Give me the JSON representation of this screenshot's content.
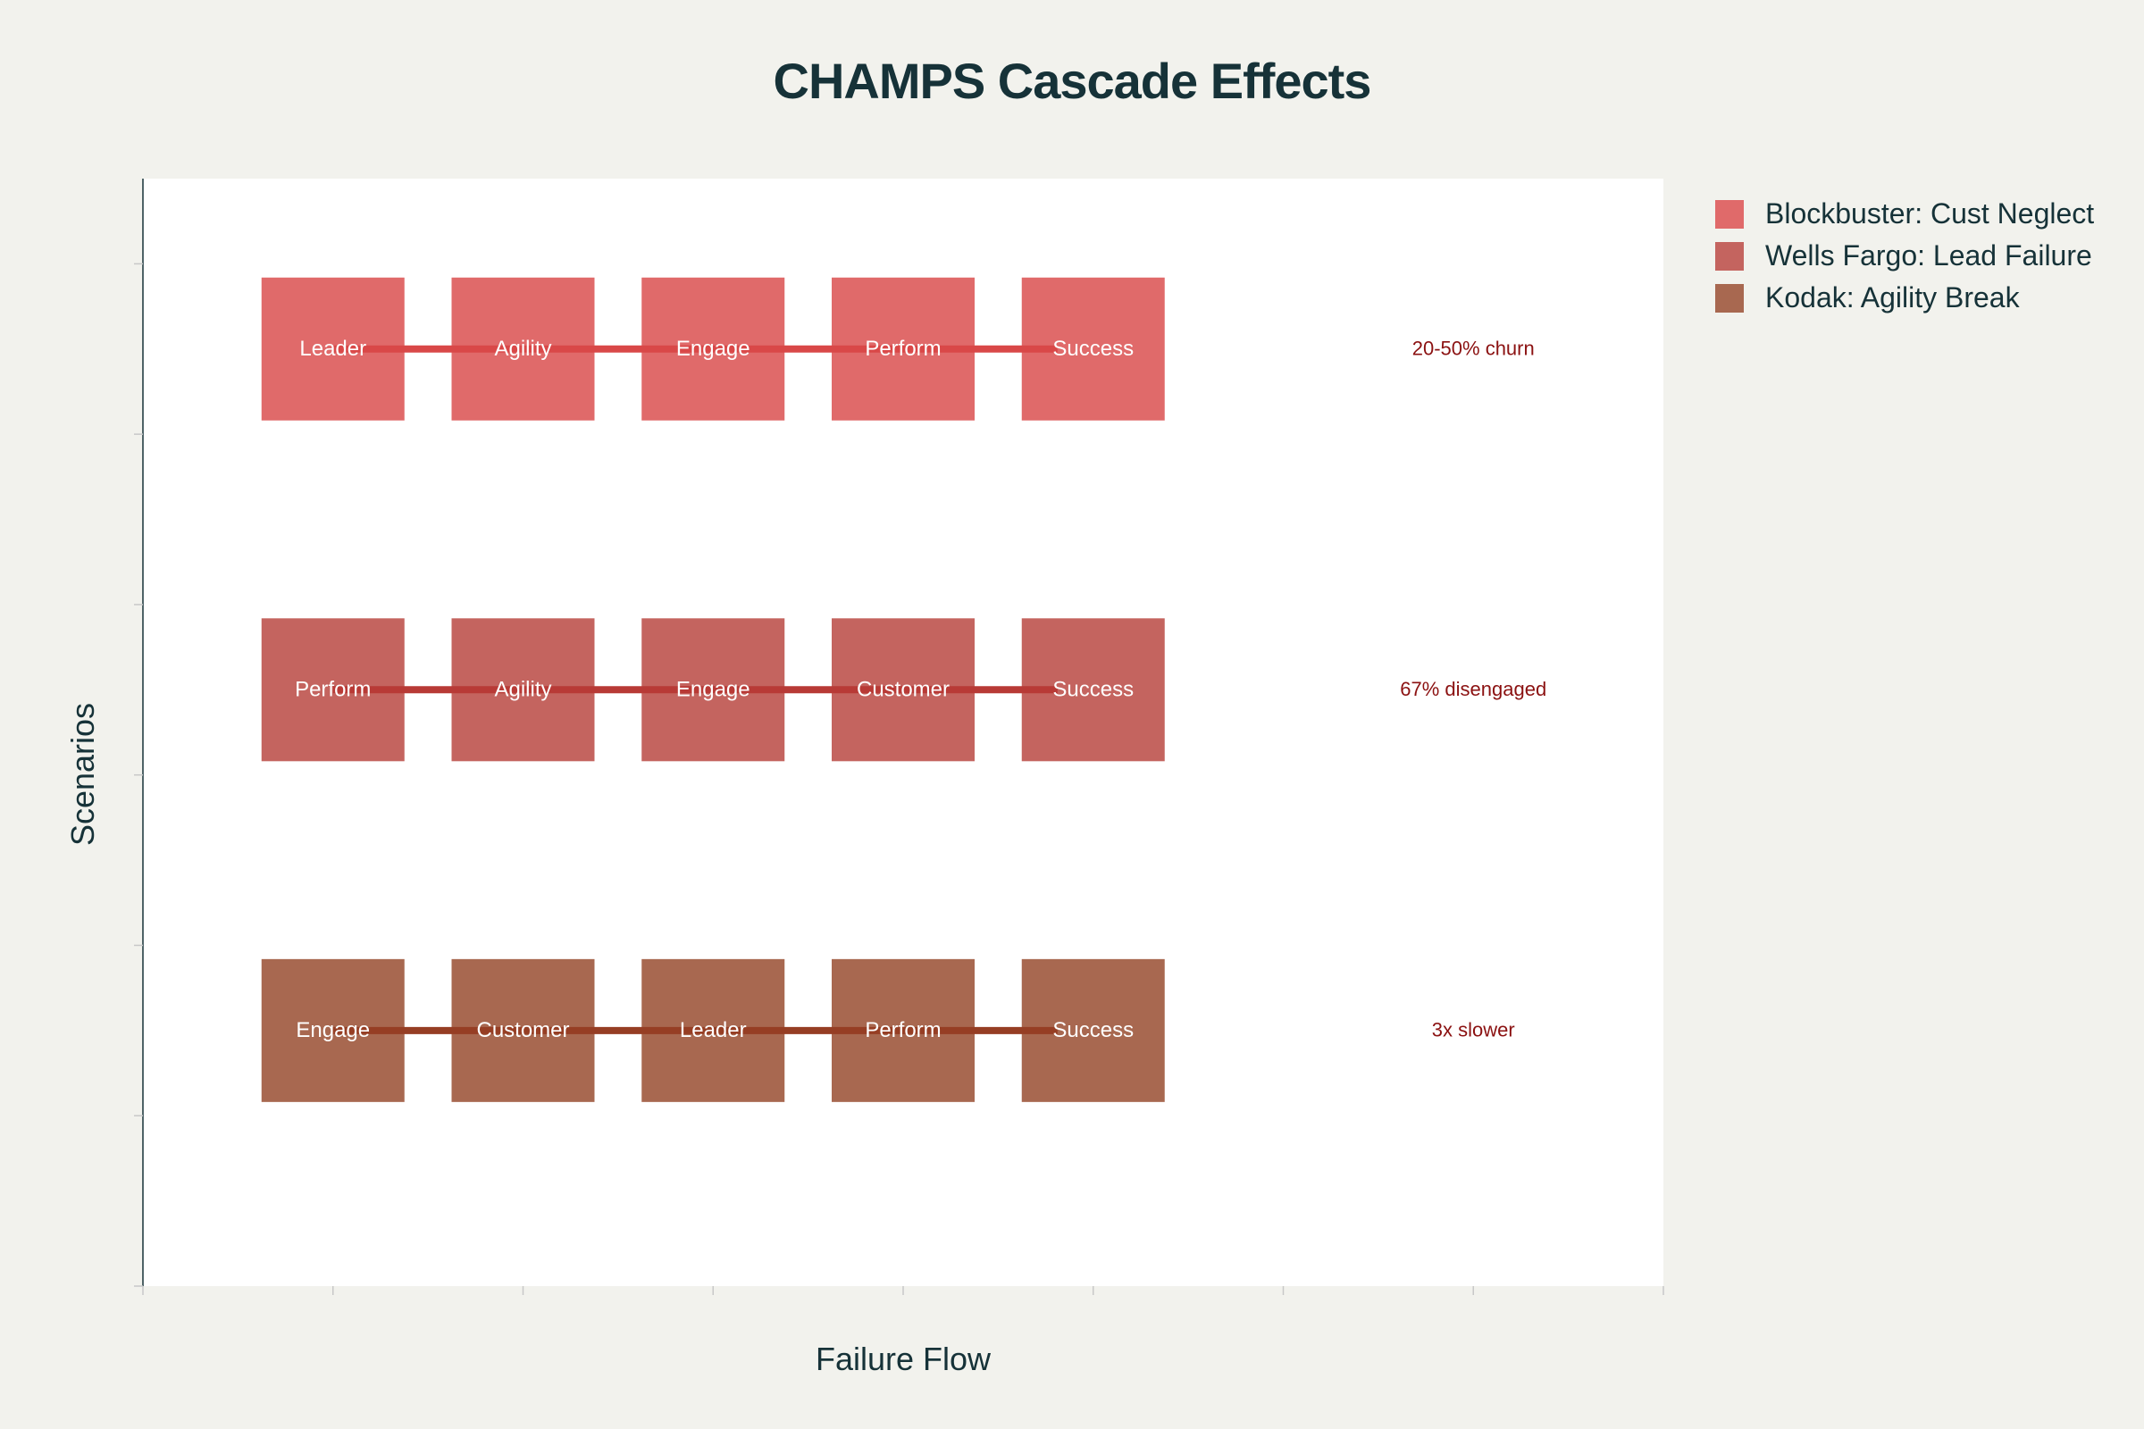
{
  "chart_data": {
    "type": "flow",
    "title": "CHAMPS Cascade Effects",
    "xlabel": "Failure Flow",
    "ylabel": "Scenarios",
    "legend_position": "top-right (outside plot)",
    "series": [
      {
        "name": "Blockbuster: Cust Neglect",
        "color": "#e06a6a",
        "line_color": "#d94848",
        "steps": [
          "Leader",
          "Agility",
          "Engage",
          "Perform",
          "Success"
        ],
        "impact": "20-50% churn"
      },
      {
        "name": "Wells Fargo: Lead Failure",
        "color": "#c4645f",
        "line_color": "#b83a36",
        "steps": [
          "Perform",
          "Agility",
          "Engage",
          "Customer",
          "Success"
        ],
        "impact": "67% disengaged"
      },
      {
        "name": "Kodak: Agility Break",
        "color": "#a86850",
        "line_color": "#963e24",
        "steps": [
          "Engage",
          "Customer",
          "Leader",
          "Perform",
          "Success"
        ],
        "impact": "3x slower"
      }
    ],
    "impact_color": "#8b1111",
    "step_text_color": "#ffffff"
  }
}
